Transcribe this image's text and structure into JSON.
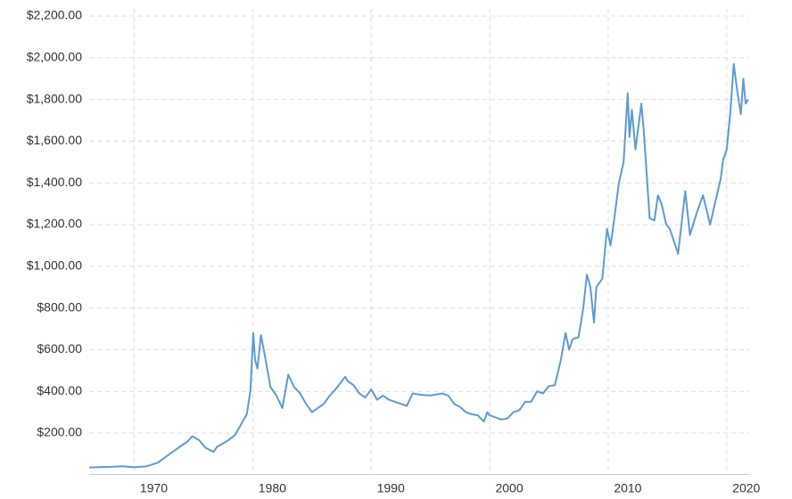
{
  "chart_data": {
    "type": "line",
    "x": [
      1966.2,
      1968,
      1969,
      1970,
      1971,
      1972,
      1973,
      1973.5,
      1974,
      1974.5,
      1974.9,
      1975.5,
      1976,
      1976.7,
      1977,
      1977.8,
      1978.5,
      1978.9,
      1979.5,
      1979.8,
      1980.05,
      1980.2,
      1980.4,
      1980.7,
      1981,
      1981.5,
      1982,
      1982.5,
      1983,
      1983.5,
      1984,
      1984.5,
      1985,
      1985.5,
      1986,
      1986.5,
      1987,
      1987.8,
      1988,
      1988.5,
      1989,
      1989.5,
      1990,
      1990.5,
      1991,
      1991.5,
      1992,
      1992.5,
      1993,
      1993.5,
      1994,
      1995,
      1996,
      1996.5,
      1997,
      1997.5,
      1998,
      1998.5,
      1999,
      1999.5,
      1999.8,
      2000,
      2000.5,
      2001,
      2001.5,
      2002,
      2002.5,
      2003,
      2003.5,
      2004,
      2004.5,
      2005,
      2005.5,
      2006,
      2006.4,
      2006.7,
      2007,
      2007.5,
      2007.9,
      2008.2,
      2008.5,
      2008.8,
      2009,
      2009.5,
      2009.9,
      2010.2,
      2010.5,
      2010.9,
      2011.3,
      2011.65,
      2011.8,
      2012,
      2012.3,
      2012.8,
      2013,
      2013.5,
      2013.9,
      2014.2,
      2014.5,
      2014.9,
      2015.2,
      2015.9,
      2016.5,
      2016.9,
      2017.5,
      2018,
      2018.6,
      2019,
      2019.5,
      2019.7,
      2020,
      2020.3,
      2020.6,
      2020.8,
      2021,
      2021.2,
      2021.4,
      2021.6,
      2021.8
    ],
    "series": [
      {
        "color": "#5b9bd5",
        "values": [
          35,
          38,
          41,
          36,
          40,
          58,
          100,
          120,
          140,
          160,
          185,
          165,
          130,
          110,
          135,
          160,
          190,
          230,
          290,
          400,
          680,
          550,
          510,
          670,
          580,
          420,
          380,
          320,
          480,
          420,
          390,
          340,
          300,
          320,
          340,
          380,
          410,
          470,
          450,
          430,
          390,
          370,
          410,
          360,
          380,
          360,
          350,
          340,
          330,
          390,
          385,
          380,
          390,
          380,
          340,
          325,
          300,
          290,
          285,
          255,
          300,
          285,
          275,
          265,
          270,
          300,
          310,
          350,
          350,
          400,
          390,
          425,
          430,
          550,
          680,
          600,
          650,
          660,
          800,
          960,
          900,
          730,
          900,
          940,
          1180,
          1100,
          1220,
          1400,
          1500,
          1830,
          1620,
          1750,
          1560,
          1780,
          1650,
          1230,
          1220,
          1340,
          1300,
          1200,
          1180,
          1060,
          1360,
          1150,
          1260,
          1340,
          1200,
          1300,
          1420,
          1510,
          1560,
          1730,
          1970,
          1880,
          1800,
          1730,
          1900,
          1780,
          1800
        ]
      }
    ],
    "xlim": [
      1966.2,
      2021.9
    ],
    "xticks": [
      1970,
      1980,
      1990,
      2000,
      2010,
      2020
    ],
    "ylim": [
      0,
      2200
    ],
    "yticks": [
      {
        "value": 200,
        "label": "$200.00"
      },
      {
        "value": 400,
        "label": "$400.00"
      },
      {
        "value": 600,
        "label": "$600.00"
      },
      {
        "value": 800,
        "label": "$800.00"
      },
      {
        "value": 1000,
        "label": "$1,000.00"
      },
      {
        "value": 1200,
        "label": "$1,200.00"
      },
      {
        "value": 1400,
        "label": "$1,400.00"
      },
      {
        "value": 1600,
        "label": "$1,600.00"
      },
      {
        "value": 1800,
        "label": "$1,800.00"
      },
      {
        "value": 2000,
        "label": "$2,000.00"
      },
      {
        "value": 2200,
        "label": "$2,200.00"
      }
    ],
    "grid": true
  }
}
